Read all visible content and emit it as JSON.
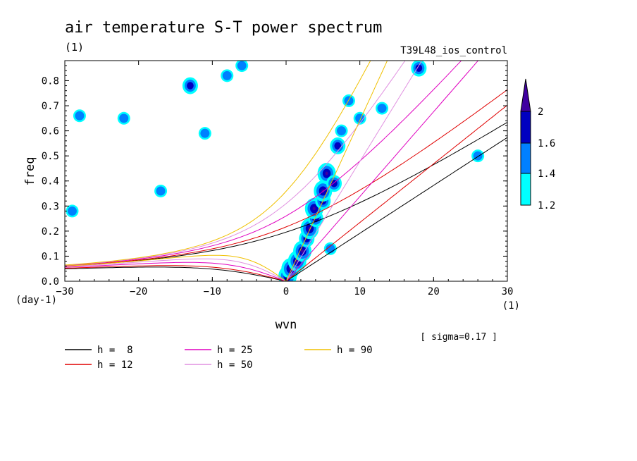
{
  "chart_data": {
    "type": "line",
    "title": "air temperature S-T power spectrum",
    "subtitle": "(1)",
    "run_label": "T39L48_ios_control",
    "xlabel": "wvn",
    "ylabel": "freq",
    "x_units": "(1)",
    "y_units": "(day-1)",
    "xlim": [
      -30,
      30
    ],
    "ylim": [
      0,
      0.88
    ],
    "xticks": [
      -30,
      -20,
      -10,
      0,
      10,
      20,
      30
    ],
    "xtick_labels": [
      "−30",
      "−20",
      "−10",
      "0",
      "10",
      "20",
      "30"
    ],
    "yticks": [
      0,
      0.1,
      0.2,
      0.3,
      0.4,
      0.5,
      0.6,
      0.7,
      0.8
    ],
    "ytick_labels": [
      "0.0",
      "0.1",
      "0.2",
      "0.3",
      "0.4",
      "0.5",
      "0.6",
      "0.7",
      "0.8"
    ],
    "sigma_label": "[ sigma=0.17 ]",
    "colorbar": {
      "levels": [
        "1.2",
        "1.4",
        "1.6",
        "2"
      ],
      "colors": [
        "#00ffff",
        "#0080ff",
        "#0000c0",
        "#4000a0"
      ]
    },
    "dispersion_curves": [
      {
        "name": "h =  8",
        "h": 8,
        "color": "#000000"
      },
      {
        "name": "h = 12",
        "h": 12,
        "color": "#e00000"
      },
      {
        "name": "h = 25",
        "h": 25,
        "color": "#e000c0"
      },
      {
        "name": "h = 50",
        "h": 50,
        "color": "#e090e0"
      },
      {
        "name": "h = 90",
        "h": 90,
        "color": "#f0c000"
      }
    ],
    "power_blobs": [
      {
        "x": 0.2,
        "y": 0.02,
        "level": 3
      },
      {
        "x": 0.6,
        "y": 0.05,
        "level": 3
      },
      {
        "x": 1.5,
        "y": 0.08,
        "level": 3
      },
      {
        "x": 2.2,
        "y": 0.12,
        "level": 3
      },
      {
        "x": 2.8,
        "y": 0.17,
        "level": 2
      },
      {
        "x": 3.2,
        "y": 0.21,
        "level": 3
      },
      {
        "x": 4.0,
        "y": 0.25,
        "level": 2
      },
      {
        "x": 3.8,
        "y": 0.29,
        "level": 3
      },
      {
        "x": 5.0,
        "y": 0.32,
        "level": 2
      },
      {
        "x": 5.0,
        "y": 0.36,
        "level": 3
      },
      {
        "x": 5.5,
        "y": 0.43,
        "level": 3
      },
      {
        "x": 6.5,
        "y": 0.39,
        "level": 2
      },
      {
        "x": 7.0,
        "y": 0.54,
        "level": 2
      },
      {
        "x": 7.5,
        "y": 0.6,
        "level": 1
      },
      {
        "x": 8.5,
        "y": 0.72,
        "level": 1
      },
      {
        "x": 10.0,
        "y": 0.65,
        "level": 1
      },
      {
        "x": 13.0,
        "y": 0.69,
        "level": 1
      },
      {
        "x": 18.0,
        "y": 0.85,
        "level": 2
      },
      {
        "x": -13.0,
        "y": 0.78,
        "level": 2
      },
      {
        "x": -17.0,
        "y": 0.36,
        "level": 1
      },
      {
        "x": -11.0,
        "y": 0.59,
        "level": 1
      },
      {
        "x": 6.0,
        "y": 0.13,
        "level": 1
      },
      {
        "x": -28.0,
        "y": 0.66,
        "level": 1
      },
      {
        "x": -8.0,
        "y": 0.82,
        "level": 1
      },
      {
        "x": -22.0,
        "y": 0.65,
        "level": 1
      },
      {
        "x": 26.0,
        "y": 0.5,
        "level": 1
      },
      {
        "x": -29.0,
        "y": 0.28,
        "level": 1
      },
      {
        "x": -6.0,
        "y": 0.86,
        "level": 1
      }
    ]
  }
}
